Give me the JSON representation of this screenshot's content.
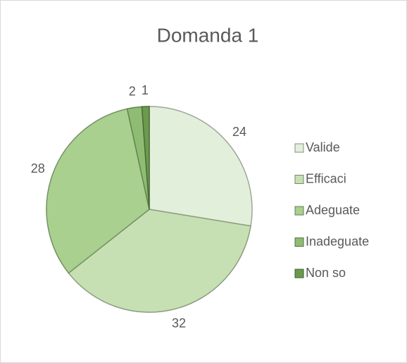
{
  "chart_data": {
    "type": "pie",
    "title": "Domanda 1",
    "categories": [
      "Valide",
      "Efficaci",
      "Adeguate",
      "Inadeguate",
      "Non so"
    ],
    "values": [
      24,
      32,
      28,
      2,
      1
    ],
    "colors": [
      "#e2efda",
      "#c6e0b4",
      "#a9d08e",
      "#8fbc73",
      "#6b9a4f"
    ],
    "legend": "right"
  }
}
